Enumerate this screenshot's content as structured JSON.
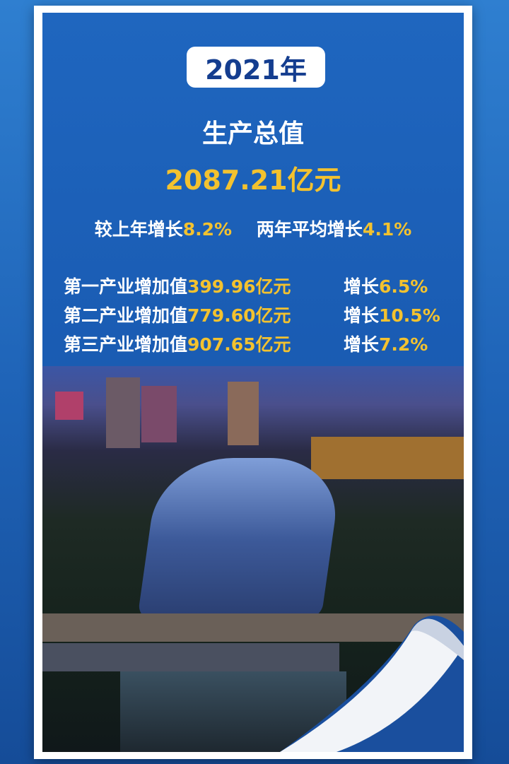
{
  "year_badge": "2021年",
  "headline": "生产总值",
  "total_value": "2087.21亿元",
  "growth": {
    "yoy_label": "较上年增长",
    "yoy_value": "8.2%",
    "avg_label": "两年平均增长",
    "avg_value": "4.1%"
  },
  "industries": [
    {
      "label": "第一产业增加值",
      "value": "399.96亿元",
      "growth_label": "增长",
      "growth_value": "6.5%"
    },
    {
      "label": "第二产业增加值",
      "value": "779.60亿元",
      "growth_label": "增长",
      "growth_value": "10.5%"
    },
    {
      "label": "第三产业增加值",
      "value": "907.65亿元",
      "growth_label": "增长",
      "growth_value": "7.2%"
    }
  ],
  "colors": {
    "accent_yellow": "#f3c22f",
    "background_blue": "#1a5cb3",
    "badge_text": "#143d8f"
  }
}
